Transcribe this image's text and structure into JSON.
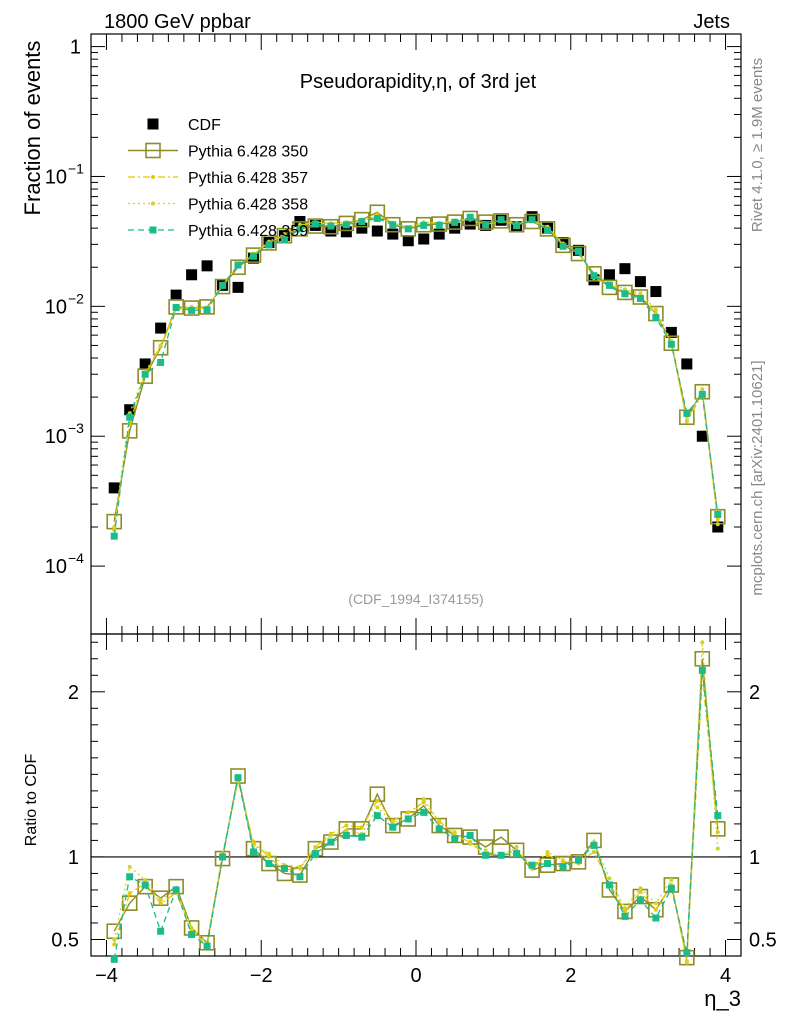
{
  "header": {
    "left": "1800 GeV ppbar",
    "right": "Jets"
  },
  "side_labels": {
    "rivet": "Rivet 4.1.0, ≥ 1.9M events",
    "mcplots": "mcplots.cern.ch [arXiv:2401.10621]"
  },
  "colors": {
    "data": "#000000",
    "p350": "#8c8c28",
    "p357": "#e6c800",
    "p358": "#d2d22d",
    "p359": "#1abc8c",
    "reference": "#999999"
  },
  "chart_data": [
    {
      "type": "scatter",
      "panel": "main",
      "title": "Pseudorapidity,η, of 3rd jet",
      "ylabel": "Fraction of events",
      "xlabel": "η_3",
      "reference_id": "(CDF_1994_I374155)",
      "xlim": [
        -4.2,
        4.2
      ],
      "ylim": [
        3e-05,
        1.25
      ],
      "yscale": "log",
      "yticks": [
        {
          "value": 1,
          "label": "1"
        },
        {
          "value": 0.1,
          "label": "10^-1"
        },
        {
          "value": 0.01,
          "label": "10^-2"
        },
        {
          "value": 0.001,
          "label": "10^-3"
        },
        {
          "value": 0.0001,
          "label": "10^-4"
        }
      ],
      "legend": [
        "CDF",
        "Pythia 6.428 350",
        "Pythia 6.428 357",
        "Pythia 6.428 358",
        "Pythia 6.428 359"
      ],
      "x": [
        -3.9,
        -3.7,
        -3.5,
        -3.3,
        -3.1,
        -2.9,
        -2.7,
        -2.5,
        -2.3,
        -2.1,
        -1.9,
        -1.7,
        -1.5,
        -1.3,
        -1.1,
        -0.9,
        -0.7,
        -0.5,
        -0.3,
        -0.1,
        0.1,
        0.3,
        0.5,
        0.7,
        0.9,
        1.1,
        1.3,
        1.5,
        1.7,
        1.9,
        2.1,
        2.3,
        2.5,
        2.7,
        2.9,
        3.1,
        3.3,
        3.5,
        3.7,
        3.9
      ],
      "series": [
        {
          "name": "CDF",
          "style": "data",
          "values": [
            0.0004,
            0.0016,
            0.0036,
            0.0068,
            0.0122,
            0.0175,
            0.0205,
            0.0145,
            0.014,
            0.0235,
            0.031,
            0.035,
            0.045,
            0.042,
            0.038,
            0.0375,
            0.04,
            0.038,
            0.036,
            0.032,
            0.033,
            0.036,
            0.04,
            0.043,
            0.042,
            0.046,
            0.041,
            0.049,
            0.04,
            0.031,
            0.027,
            0.016,
            0.0175,
            0.0195,
            0.0155,
            0.013,
            0.0063,
            0.0036,
            0.001,
            0.0002
          ]
        },
        {
          "name": "Pythia 6.428 350",
          "style": "p350",
          "values": [
            0.00022,
            0.0011,
            0.0029,
            0.0048,
            0.0099,
            0.0097,
            0.0099,
            0.0142,
            0.02,
            0.0248,
            0.0308,
            0.035,
            0.0395,
            0.0415,
            0.041,
            0.0435,
            0.0465,
            0.053,
            0.0425,
            0.0395,
            0.0425,
            0.043,
            0.0445,
            0.0475,
            0.0445,
            0.0455,
            0.0425,
            0.045,
            0.0395,
            0.0295,
            0.0255,
            0.0178,
            0.014,
            0.0128,
            0.0118,
            0.0088,
            0.0052,
            0.0014,
            0.0022,
            0.00024
          ]
        },
        {
          "name": "Pythia 6.428 357",
          "style": "p357",
          "values": [
            0.00019,
            0.00125,
            0.003,
            0.0049,
            0.0095,
            0.0097,
            0.0096,
            0.0146,
            0.0205,
            0.0255,
            0.031,
            0.0355,
            0.042,
            0.0445,
            0.0435,
            0.0445,
            0.0465,
            0.051,
            0.044,
            0.0405,
            0.044,
            0.044,
            0.045,
            0.047,
            0.0425,
            0.0455,
            0.0425,
            0.0455,
            0.0405,
            0.03,
            0.0262,
            0.0165,
            0.0147,
            0.013,
            0.0122,
            0.0088,
            0.0052,
            0.0013,
            0.0021,
            0.00023
          ]
        },
        {
          "name": "Pythia 6.428 358",
          "style": "p358",
          "values": [
            0.0002,
            0.0015,
            0.0031,
            0.005,
            0.0097,
            0.0099,
            0.0098,
            0.0148,
            0.0205,
            0.025,
            0.0315,
            0.036,
            0.0425,
            0.044,
            0.043,
            0.0435,
            0.0455,
            0.0495,
            0.0435,
            0.0395,
            0.0445,
            0.0435,
            0.046,
            0.0465,
            0.0435,
            0.046,
            0.0435,
            0.046,
            0.041,
            0.0305,
            0.026,
            0.0175,
            0.0152,
            0.0135,
            0.0126,
            0.0094,
            0.0054,
            0.0013,
            0.0023,
            0.00021
          ]
        },
        {
          "name": "Pythia 6.428 359",
          "style": "p359",
          "values": [
            0.00017,
            0.0014,
            0.003,
            0.0037,
            0.0098,
            0.0093,
            0.0094,
            0.0145,
            0.0208,
            0.0243,
            0.0297,
            0.0325,
            0.0395,
            0.043,
            0.0415,
            0.0425,
            0.045,
            0.0475,
            0.0425,
            0.0395,
            0.042,
            0.042,
            0.0443,
            0.0485,
            0.0425,
            0.0465,
            0.0418,
            0.0465,
            0.0385,
            0.029,
            0.0265,
            0.0172,
            0.0145,
            0.0125,
            0.0115,
            0.0082,
            0.0051,
            0.0015,
            0.0021,
            0.00025
          ]
        }
      ]
    },
    {
      "type": "line",
      "panel": "ratio",
      "ylabel": "Ratio to CDF",
      "xlabel": "η_3",
      "xlim": [
        -4.2,
        4.2
      ],
      "ylim": [
        0.4,
        2.35
      ],
      "yticks": [
        {
          "value": 0.5,
          "label": "0.5"
        },
        {
          "value": 1,
          "label": "1"
        },
        {
          "value": 2,
          "label": "2"
        }
      ],
      "xticks": [
        {
          "value": -4,
          "label": "−4"
        },
        {
          "value": -2,
          "label": "−2"
        },
        {
          "value": 0,
          "label": "0"
        },
        {
          "value": 2,
          "label": "2"
        },
        {
          "value": 4,
          "label": "4"
        }
      ],
      "x": [
        -3.9,
        -3.7,
        -3.5,
        -3.3,
        -3.1,
        -2.9,
        -2.7,
        -2.5,
        -2.3,
        -2.1,
        -1.9,
        -1.7,
        -1.5,
        -1.3,
        -1.1,
        -0.9,
        -0.7,
        -0.5,
        -0.3,
        -0.1,
        0.1,
        0.3,
        0.5,
        0.7,
        0.9,
        1.1,
        1.3,
        1.5,
        1.7,
        1.9,
        2.1,
        2.3,
        2.5,
        2.7,
        2.9,
        3.1,
        3.3,
        3.5,
        3.7,
        3.9
      ],
      "series": [
        {
          "name": "Pythia 6.428 350",
          "style": "p350",
          "values": [
            0.55,
            0.72,
            0.82,
            0.75,
            0.82,
            0.57,
            0.48,
            0.99,
            1.49,
            1.05,
            0.96,
            0.9,
            0.89,
            1.05,
            1.09,
            1.17,
            1.17,
            1.38,
            1.19,
            1.23,
            1.31,
            1.19,
            1.13,
            1.12,
            1.06,
            1.12,
            1.04,
            0.92,
            0.95,
            0.96,
            0.97,
            1.1,
            0.8,
            0.67,
            0.76,
            0.68,
            0.83,
            0.39,
            2.2,
            1.17
          ]
        },
        {
          "name": "Pythia 6.428 357",
          "style": "p357",
          "values": [
            0.47,
            0.78,
            0.84,
            0.72,
            0.78,
            0.56,
            0.46,
            1.01,
            1.46,
            1.09,
            1.0,
            0.92,
            0.93,
            1.06,
            1.14,
            1.19,
            1.18,
            1.34,
            1.22,
            1.27,
            1.33,
            1.22,
            1.13,
            1.09,
            1.01,
            1.01,
            1.04,
            0.93,
            1.01,
            0.97,
            0.97,
            1.03,
            0.84,
            0.67,
            0.79,
            0.68,
            0.83,
            0.37,
            2.1,
            1.15
          ]
        },
        {
          "name": "Pythia 6.428 358",
          "style": "p358",
          "values": [
            0.5,
            0.94,
            0.86,
            0.74,
            0.8,
            0.57,
            0.48,
            1.02,
            1.46,
            1.07,
            1.02,
            0.95,
            0.94,
            1.05,
            1.13,
            1.16,
            1.14,
            1.3,
            1.21,
            1.23,
            1.35,
            1.21,
            1.15,
            1.08,
            1.04,
            1.0,
            1.06,
            0.94,
            1.03,
            0.98,
            0.96,
            1.09,
            0.87,
            0.69,
            0.81,
            0.72,
            0.86,
            0.36,
            2.3,
            1.05
          ]
        },
        {
          "name": "Pythia 6.428 359",
          "style": "p359",
          "values": [
            0.38,
            0.88,
            0.83,
            0.55,
            0.8,
            0.53,
            0.46,
            1.0,
            1.48,
            1.03,
            0.96,
            0.93,
            0.88,
            1.02,
            1.09,
            1.13,
            1.12,
            1.25,
            1.18,
            1.23,
            1.27,
            1.17,
            1.11,
            1.13,
            1.01,
            1.01,
            1.02,
            0.95,
            0.96,
            0.94,
            0.98,
            1.07,
            0.83,
            0.64,
            0.74,
            0.63,
            0.81,
            0.42,
            2.13,
            1.25
          ]
        }
      ]
    }
  ]
}
